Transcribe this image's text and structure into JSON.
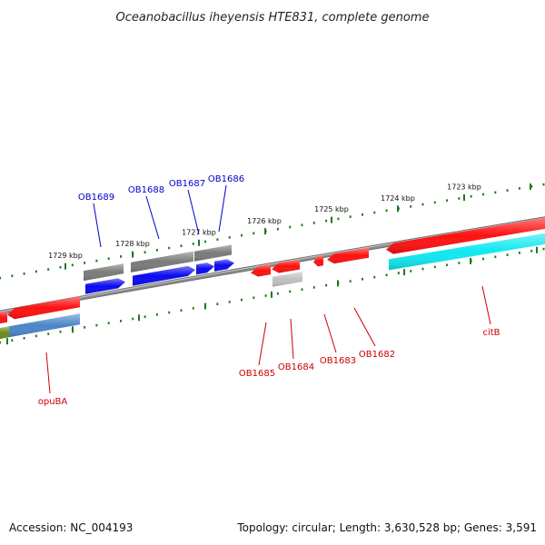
{
  "title": "Oceanobacillus iheyensis HTE831, complete genome",
  "footer": {
    "accession": "Accession: NC_004193",
    "topology": "Topology: circular; Length: 3,630,528 bp; Genes: 3,591"
  },
  "colors": {
    "backbone": "#8a8a8a",
    "tick": "#1f7a1f",
    "forward_label": "#0000cc",
    "reverse_label": "#cc0000",
    "gene_red": "#ff1010",
    "gene_blue": "#0a0af0",
    "gene_gray": "#7a7a7a",
    "gene_lightgray": "#c0c0c0",
    "gene_cyan": "#10e8f0",
    "gene_steelblue": "#4a86c8",
    "gene_olive": "#6c8a1a"
  },
  "scale_labels": [
    "1723 kbp",
    "1724 kbp",
    "1725 kbp",
    "1726 kbp",
    "1727 kbp",
    "1728 kbp",
    "1729 kbp"
  ],
  "forward_genes": [
    "OB1689",
    "OB1688",
    "OB1687",
    "OB1686"
  ],
  "reverse_genes": [
    "OB1685",
    "OB1684",
    "OB1683",
    "OB1682",
    "citB",
    "opuBA"
  ]
}
